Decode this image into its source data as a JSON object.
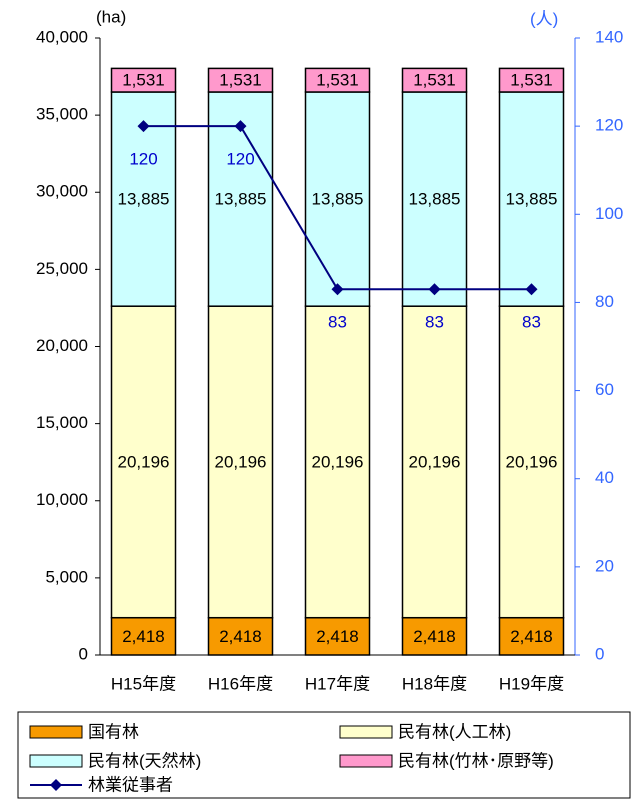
{
  "chart_data": {
    "type": "bar",
    "categories": [
      "H15年度",
      "H16年度",
      "H17年度",
      "H18年度",
      "H19年度"
    ],
    "series": [
      {
        "name": "国有林",
        "color": "#f79a00",
        "values": [
          2418,
          2418,
          2418,
          2418,
          2418
        ],
        "value_labels": [
          "2,418",
          "2,418",
          "2,418",
          "2,418",
          "2,418"
        ]
      },
      {
        "name": "民有林(人工林)",
        "color": "#ffffcc",
        "values": [
          20196,
          20196,
          20196,
          20196,
          20196
        ],
        "value_labels": [
          "20,196",
          "20,196",
          "20,196",
          "20,196",
          "20,196"
        ]
      },
      {
        "name": "民有林(天然林)",
        "color": "#ccffff",
        "values": [
          13885,
          13885,
          13885,
          13885,
          13885
        ],
        "value_labels": [
          "13,885",
          "13,885",
          "13,885",
          "13,885",
          "13,885"
        ]
      },
      {
        "name": "民有林(竹林･原野等)",
        "color": "#ff99cc",
        "values": [
          1531,
          1531,
          1531,
          1531,
          1531
        ],
        "value_labels": [
          "1,531",
          "1,531",
          "1,531",
          "1,531",
          "1,531"
        ]
      },
      {
        "name": "林業従事者",
        "color": "#000080",
        "type": "line",
        "axis": "y2",
        "values": [
          120,
          120,
          83,
          83,
          83
        ]
      }
    ],
    "y_label": "(ha)",
    "y2_label": "(人)",
    "ylim": [
      0,
      40000
    ],
    "yticks": [
      0,
      {
        "value": 5000,
        "label": "5,000"
      },
      {
        "value": 10000,
        "label": "10,000"
      },
      {
        "value": 15000,
        "label": "15,000"
      },
      {
        "value": 20000,
        "label": "20,000"
      },
      {
        "value": 25000,
        "label": "25,000"
      },
      {
        "value": 30000,
        "label": "30,000"
      },
      {
        "value": 35000,
        "label": "35,000"
      },
      {
        "value": 40000,
        "label": "40,000"
      }
    ],
    "y2lim": [
      0,
      140
    ],
    "y2ticks": [
      0,
      20,
      40,
      60,
      80,
      100,
      120,
      140
    ],
    "legend": "bottom"
  }
}
